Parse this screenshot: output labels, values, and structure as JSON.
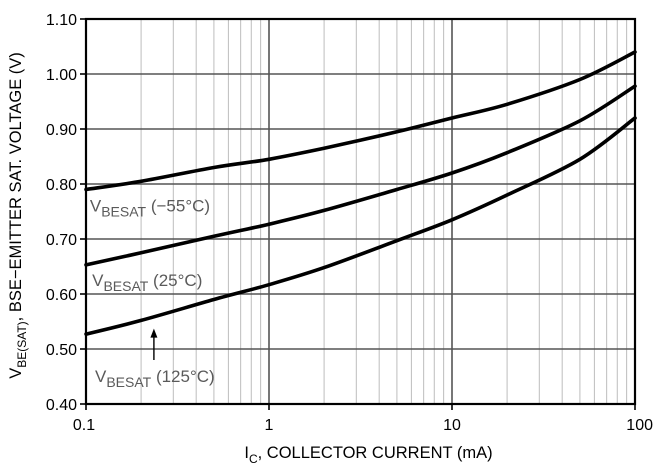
{
  "chart_data": {
    "type": "line",
    "x_scale": "log",
    "xlim": [
      0.1,
      100
    ],
    "ylim": [
      0.4,
      1.1
    ],
    "grid": true,
    "xlabel": {
      "main": "I",
      "sub": "C",
      "rest": ", COLLECTOR CURRENT (mA)"
    },
    "ylabel": {
      "main": "V",
      "sub": "BE(SAT)",
      "rest": ", BSE−EMITTER SAT. VOLTAGE (V)"
    },
    "x_ticks": [
      {
        "value": 0.1,
        "label": "0.1"
      },
      {
        "value": 1,
        "label": "1"
      },
      {
        "value": 10,
        "label": "10"
      },
      {
        "value": 100,
        "label": "100"
      }
    ],
    "y_ticks": [
      {
        "value": 0.4,
        "label": "0.40"
      },
      {
        "value": 0.5,
        "label": "0.50"
      },
      {
        "value": 0.6,
        "label": "0.60"
      },
      {
        "value": 0.7,
        "label": "0.70"
      },
      {
        "value": 0.8,
        "label": "0.80"
      },
      {
        "value": 0.9,
        "label": "0.90"
      },
      {
        "value": 1.0,
        "label": "1.00"
      },
      {
        "value": 1.1,
        "label": "1.10"
      }
    ],
    "series": [
      {
        "label": {
          "main": "V",
          "sub": "BESAT",
          "rest": " (−55°C)"
        },
        "x": [
          0.1,
          0.2,
          0.5,
          1,
          2,
          5,
          10,
          20,
          50,
          100
        ],
        "y": [
          0.79,
          0.805,
          0.83,
          0.845,
          0.865,
          0.895,
          0.92,
          0.945,
          0.99,
          1.04
        ]
      },
      {
        "label": {
          "main": "V",
          "sub": "BESAT",
          "rest": " (25°C)"
        },
        "x": [
          0.1,
          0.2,
          0.5,
          1,
          2,
          5,
          10,
          20,
          50,
          100
        ],
        "y": [
          0.653,
          0.675,
          0.705,
          0.727,
          0.752,
          0.79,
          0.82,
          0.857,
          0.915,
          0.978
        ]
      },
      {
        "label": {
          "main": "V",
          "sub": "BESAT",
          "rest": " (125°C)"
        },
        "x": [
          0.1,
          0.2,
          0.5,
          1,
          2,
          5,
          10,
          20,
          50,
          100
        ],
        "y": [
          0.527,
          0.552,
          0.59,
          0.617,
          0.648,
          0.697,
          0.735,
          0.78,
          0.845,
          0.92
        ]
      }
    ]
  }
}
